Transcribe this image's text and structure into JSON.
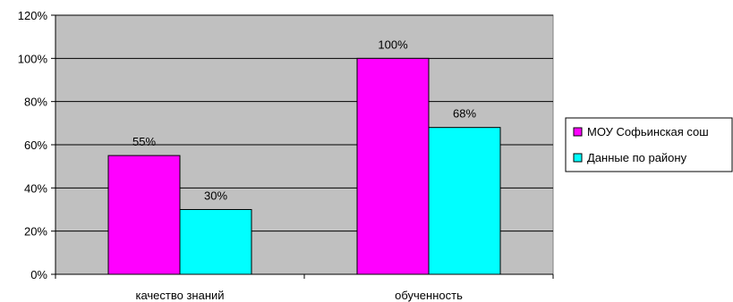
{
  "chart_data": {
    "type": "bar",
    "categories": [
      "качество знаний",
      "обученность"
    ],
    "series": [
      {
        "name": "МОУ Софьинская сош",
        "values": [
          55,
          100
        ],
        "labels": [
          "55%",
          "100%"
        ],
        "color": "#FF00FF"
      },
      {
        "name": "Данные по району",
        "values": [
          30,
          68
        ],
        "labels": [
          "30%",
          "68%"
        ],
        "color": "#00FFFF"
      }
    ],
    "ylim": [
      0,
      120
    ],
    "yticks": [
      0,
      20,
      40,
      60,
      80,
      100,
      120
    ],
    "ytick_labels": [
      "0%",
      "20%",
      "40%",
      "60%",
      "80%",
      "100%",
      "120%"
    ],
    "grid": true,
    "plot_background": "#C0C0C0",
    "legend_position": "right"
  }
}
